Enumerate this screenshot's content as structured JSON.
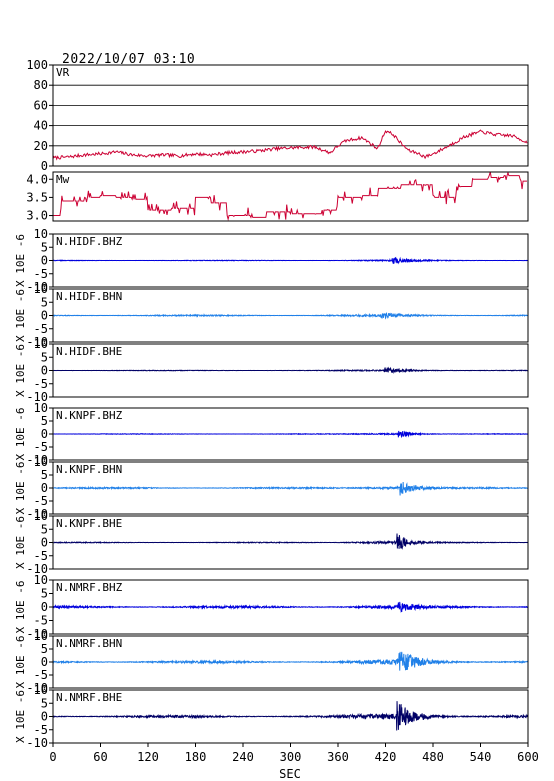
{
  "chart_data": {
    "type": "line",
    "title": "2022/10/07  03:10",
    "xlabel": "SEC",
    "x_range": [
      0,
      600
    ],
    "x_ticks": [
      "0",
      "60",
      "120",
      "180",
      "240",
      "300",
      "360",
      "420",
      "480",
      "540",
      "600"
    ],
    "panels": [
      {
        "label": "VR",
        "kind": "line",
        "color": "#cc0033",
        "ylim": [
          0,
          100
        ],
        "y_ticks": [
          "100",
          "80",
          "60",
          "40",
          "20",
          "0"
        ],
        "y_tick_values": [
          100,
          80,
          60,
          40,
          20,
          0
        ],
        "grid": true,
        "points": [
          [
            0,
            8
          ],
          [
            20,
            9
          ],
          [
            40,
            11
          ],
          [
            60,
            12
          ],
          [
            80,
            14
          ],
          [
            100,
            11
          ],
          [
            120,
            10
          ],
          [
            140,
            11
          ],
          [
            160,
            10
          ],
          [
            180,
            12
          ],
          [
            200,
            11
          ],
          [
            220,
            13
          ],
          [
            240,
            14
          ],
          [
            260,
            15
          ],
          [
            280,
            17
          ],
          [
            300,
            18
          ],
          [
            330,
            19
          ],
          [
            350,
            13
          ],
          [
            360,
            20
          ],
          [
            370,
            25
          ],
          [
            390,
            28
          ],
          [
            400,
            23
          ],
          [
            410,
            17
          ],
          [
            420,
            35
          ],
          [
            430,
            31
          ],
          [
            440,
            22
          ],
          [
            450,
            15
          ],
          [
            460,
            13
          ],
          [
            470,
            9
          ],
          [
            480,
            12
          ],
          [
            500,
            20
          ],
          [
            520,
            29
          ],
          [
            540,
            34
          ],
          [
            560,
            31
          ],
          [
            580,
            30
          ],
          [
            600,
            23
          ]
        ]
      },
      {
        "label": "Mw",
        "kind": "step",
        "color": "#cc0033",
        "ylim": [
          2.85,
          4.2
        ],
        "y_ticks": [
          "4.0",
          "3.5",
          "3.0"
        ],
        "y_tick_values": [
          4.0,
          3.5,
          3.0
        ],
        "grid": false,
        "points": [
          [
            0,
            3.0
          ],
          [
            10,
            3.4
          ],
          [
            40,
            3.5
          ],
          [
            60,
            3.55
          ],
          [
            80,
            3.5
          ],
          [
            100,
            3.45
          ],
          [
            120,
            3.15
          ],
          [
            150,
            3.2
          ],
          [
            180,
            3.5
          ],
          [
            200,
            3.35
          ],
          [
            220,
            3.0
          ],
          [
            250,
            2.95
          ],
          [
            270,
            3.1
          ],
          [
            300,
            3.05
          ],
          [
            340,
            3.15
          ],
          [
            360,
            3.5
          ],
          [
            390,
            3.55
          ],
          [
            410,
            3.75
          ],
          [
            440,
            3.85
          ],
          [
            480,
            3.5
          ],
          [
            510,
            3.8
          ],
          [
            530,
            4.0
          ],
          [
            550,
            4.05
          ],
          [
            570,
            4.1
          ],
          [
            590,
            3.95
          ],
          [
            600,
            3.9
          ]
        ]
      },
      {
        "label": "N.HIDF.BHZ",
        "kind": "waveform",
        "color": "#0000dd",
        "ylim": [
          -10,
          10
        ],
        "arrival": 428,
        "amp": 1.3,
        "noise": 0.12,
        "decay": 20
      },
      {
        "label": "N.HIDF.BHN",
        "kind": "waveform",
        "color": "#2080e8",
        "ylim": [
          -10,
          10
        ],
        "arrival": 414,
        "amp": 1.1,
        "noise": 0.25,
        "decay": 22
      },
      {
        "label": "N.HIDF.BHE",
        "kind": "waveform",
        "color": "#000066",
        "ylim": [
          -10,
          10
        ],
        "arrival": 418,
        "amp": 1.2,
        "noise": 0.12,
        "decay": 24
      },
      {
        "label": "N.KNPF.BHZ",
        "kind": "waveform",
        "color": "#0000dd",
        "ylim": [
          -10,
          10
        ],
        "arrival": 436,
        "amp": 1.7,
        "noise": 0.12,
        "decay": 14
      },
      {
        "label": "N.KNPF.BHN",
        "kind": "waveform",
        "color": "#2080e8",
        "ylim": [
          -10,
          10
        ],
        "arrival": 438,
        "amp": 3.2,
        "noise": 0.28,
        "decay": 16
      },
      {
        "label": "N.KNPF.BHE",
        "kind": "waveform",
        "color": "#000066",
        "ylim": [
          -10,
          10
        ],
        "arrival": 434,
        "amp": 3.6,
        "noise": 0.16,
        "decay": 14
      },
      {
        "label": "N.NMRF.BHZ",
        "kind": "waveform",
        "color": "#0000dd",
        "ylim": [
          -10,
          10
        ],
        "arrival": 436,
        "amp": 1.8,
        "noise": 0.45,
        "decay": 18
      },
      {
        "label": "N.NMRF.BHN",
        "kind": "waveform",
        "color": "#2080e8",
        "ylim": [
          -10,
          10
        ],
        "arrival": 436,
        "amp": 5.0,
        "noise": 0.45,
        "decay": 20
      },
      {
        "label": "N.NMRF.BHE",
        "kind": "waveform",
        "color": "#000066",
        "ylim": [
          -10,
          10
        ],
        "arrival": 434,
        "amp": 6.2,
        "noise": 0.45,
        "decay": 18
      }
    ],
    "waveform_y_ticks": [
      "10",
      "5",
      "0",
      "-5",
      "-10"
    ],
    "waveform_y_tick_values": [
      10,
      5,
      0,
      -5,
      -10
    ],
    "waveform_ylabel": "X 10E -6"
  }
}
